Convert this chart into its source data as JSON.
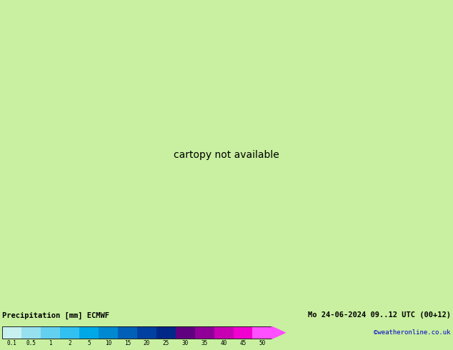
{
  "title_left": "Precipitation [mm] ECMWF",
  "title_right": "Mo 24-06-2024 09..12 UTC (00+12)",
  "credit": "©weatheronline.co.uk",
  "colorbar_labels": [
    "0.1",
    "0.5",
    "1",
    "2",
    "5",
    "10",
    "15",
    "20",
    "25",
    "30",
    "35",
    "40",
    "45",
    "50"
  ],
  "colorbar_colors": [
    "#c8f0f0",
    "#96e0f0",
    "#64d0f0",
    "#32c0f0",
    "#00a8e8",
    "#0088d0",
    "#0060b8",
    "#0040a0",
    "#002888",
    "#600080",
    "#900099",
    "#c800b4",
    "#f000d0",
    "#ff50ff"
  ],
  "land_color": "#c8f0a0",
  "sea_color": "#e0e8e8",
  "border_color": "#909090",
  "bottom_bar_color": "#c8f0a0",
  "text_color": "#000000",
  "credit_color": "#0000cc",
  "lon_min": -12.0,
  "lon_max": 22.0,
  "lat_min": 46.5,
  "lat_max": 62.5,
  "fig_width": 6.34,
  "fig_height": 4.9,
  "dpi": 100
}
